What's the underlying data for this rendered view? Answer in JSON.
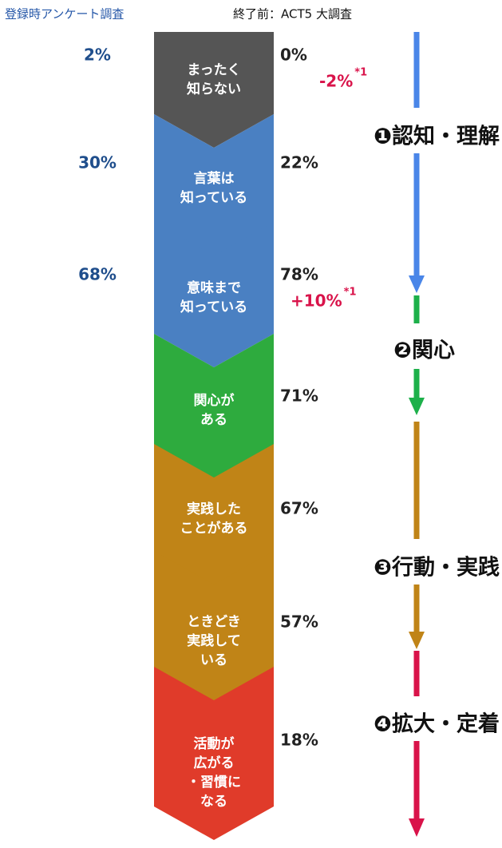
{
  "header": {
    "before": "登録時アンケート調査",
    "after": "終了前：ACT5 大調査"
  },
  "stages": [
    {
      "label": [
        "まったく",
        "知らない"
      ],
      "before": "2%",
      "after": "0%",
      "change": "-2%",
      "note": "*1",
      "color": "#555555"
    },
    {
      "label": [
        "言葉は",
        "知っている"
      ],
      "before": "30%",
      "after": "22%",
      "color": "#4a80c2"
    },
    {
      "label": [
        "意味まで",
        "知っている"
      ],
      "before": "68%",
      "after": "78%",
      "change": "+10%",
      "note": "*1",
      "color": "#4a80c2"
    },
    {
      "label": [
        "関心が",
        "ある"
      ],
      "after": "71%",
      "color": "#2eab3e"
    },
    {
      "label": [
        "実践した",
        "ことがある"
      ],
      "after": "67%",
      "color": "#c08417"
    },
    {
      "label": [
        "ときどき",
        "実践して",
        "いる"
      ],
      "after": "57%",
      "color": "#c08417"
    },
    {
      "label": [
        "活動が",
        "広がる",
        "・習慣に",
        "なる"
      ],
      "after": "18%",
      "color": "#e03b2a"
    }
  ],
  "phases": [
    "❶認知・理解",
    "❷関心",
    "❸行動・実践",
    "❹拡大・定着"
  ]
}
